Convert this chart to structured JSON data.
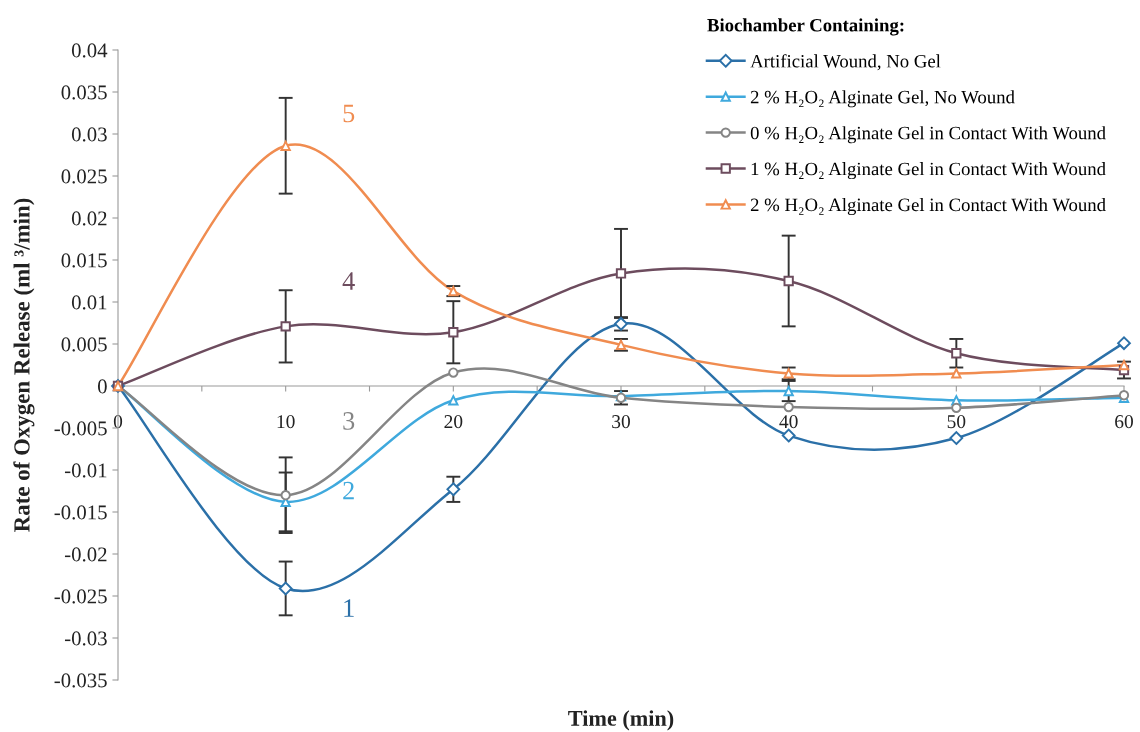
{
  "chart_data": {
    "type": "line",
    "xlabel": "Time (min)",
    "ylabel": "Rate of Oxygen Release (ml ³/min)",
    "legend_title": "Biochamber Containing:",
    "x": [
      0,
      10,
      20,
      30,
      40,
      50,
      60
    ],
    "xlim": [
      0,
      60
    ],
    "xticks": [
      0,
      {
        "value": 5,
        "label": null
      },
      10,
      {
        "value": 15,
        "label": null
      },
      20,
      {
        "value": 25,
        "label": null
      },
      30,
      {
        "value": 35,
        "label": null
      },
      40,
      {
        "value": 45,
        "label": null
      },
      50,
      {
        "value": 55,
        "label": null
      },
      60
    ],
    "ylim": [
      -0.035,
      0.04
    ],
    "yticks": [
      -0.035,
      -0.03,
      -0.025,
      -0.02,
      -0.015,
      -0.01,
      -0.005,
      0,
      0.005,
      0.01,
      0.015,
      0.02,
      0.025,
      0.03,
      0.035,
      0.04
    ],
    "legend": "top right",
    "line_style": "solid",
    "series": [
      {
        "name": "Artificial Wound, No Gel",
        "color": "#2b70a8",
        "marker": "diamond",
        "values": [
          0,
          -0.0241,
          -0.0123,
          0.0074,
          -0.0059,
          -0.0062,
          0.0051
        ],
        "errors": [
          null,
          0.0032,
          0.0015,
          0.0008,
          null,
          null,
          null
        ]
      },
      {
        "name": "2 % H₂O₂ Alginate Gel, No Wound",
        "color": "#3fa9dd",
        "marker": "triangle",
        "values": [
          0,
          -0.0138,
          -0.0017,
          -0.0012,
          -0.0006,
          -0.0017,
          -0.0014
        ],
        "errors": [
          null,
          0.0035,
          null,
          null,
          0.0012,
          null,
          null
        ]
      },
      {
        "name": "0 % H₂O₂ Alginate Gel in Contact With Wound",
        "color": "#858585",
        "marker": "circle",
        "values": [
          0,
          -0.013,
          0.0016,
          -0.0014,
          -0.0025,
          -0.0026,
          -0.0011
        ],
        "errors": [
          null,
          0.0045,
          null,
          0.0008,
          null,
          null,
          null
        ]
      },
      {
        "name": "1 % H₂O₂ Alginate Gel in Contact With Wound",
        "color": "#6d4c5e",
        "marker": "square",
        "values": [
          0,
          0.0071,
          0.0064,
          0.0134,
          0.0125,
          0.0039,
          0.0019
        ],
        "errors": [
          null,
          0.0043,
          0.0037,
          0.0053,
          0.0054,
          0.0017,
          0.001
        ]
      },
      {
        "name": "2 % H₂O₂ Alginate Gel in Contact With Wound",
        "color": "#f08c50",
        "marker": "triangle",
        "values": [
          0,
          0.0286,
          0.0113,
          0.0049,
          0.0015,
          0.0015,
          0.0025
        ],
        "errors": [
          null,
          0.0057,
          0.0006,
          0.0007,
          0.0007,
          null,
          null
        ]
      }
    ],
    "annotations": [
      "1",
      "2",
      "3",
      "4",
      "5"
    ]
  }
}
